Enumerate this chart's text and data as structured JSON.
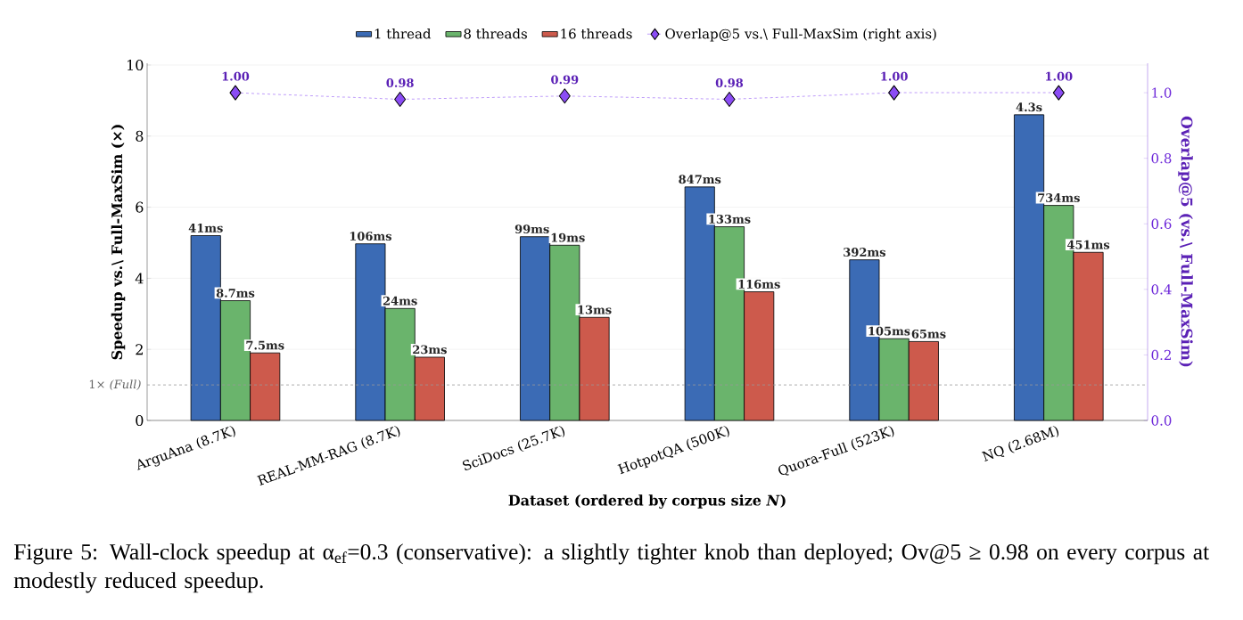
{
  "chart_data": {
    "type": "bar",
    "categories": [
      "ArguAna (8.7K)",
      "REAL-MM-RAG (8.7K)",
      "SciDocs (25.7K)",
      "HotpotQA (500K)",
      "Quora-Full (523K)",
      "NQ (2.68M)"
    ],
    "series": [
      {
        "name": "1 thread",
        "color": "#3b6bb5",
        "values": [
          5.2,
          4.97,
          5.17,
          6.57,
          4.52,
          8.6
        ]
      },
      {
        "name": "8 threads",
        "color": "#6ab46c",
        "values": [
          3.37,
          3.15,
          4.93,
          5.45,
          2.3,
          6.05
        ]
      },
      {
        "name": "16 threads",
        "color": "#cd5a4c",
        "values": [
          1.9,
          1.78,
          2.9,
          3.62,
          2.22,
          4.73
        ]
      },
      {
        "name": "Overlap@5 vs.\\ Full-MaxSim (right axis)",
        "type": "line",
        "axis": "y2",
        "color": "#8b4cf5",
        "line_style": "dashed",
        "marker": "diamond",
        "values": [
          1.0,
          0.98,
          0.99,
          0.98,
          1.0,
          1.0
        ],
        "value_labels": [
          "1.00",
          "0.98",
          "0.99",
          "0.98",
          "1.00",
          "1.00"
        ]
      }
    ],
    "xlabel": "Dataset (ordered by corpus size *N*)",
    "ylabel": "Speedup vs.\\ Full-MaxSim (×)",
    "y2label": "Overlap@5  (vs.\\ Full-MaxSim)",
    "ylim": [
      0,
      10.05
    ],
    "yticks": [
      0,
      2,
      4,
      6,
      8,
      10
    ],
    "y2lim": [
      0,
      1.09
    ],
    "y2ticks": [
      {
        "value": 0,
        "label": "0.0"
      },
      0.2,
      0.4,
      0.6,
      0.8,
      {
        "value": 1.0,
        "label": "1.0"
      }
    ],
    "grid": "y",
    "legend": "top",
    "ref_lines": [
      {
        "axis": "y",
        "value": 1,
        "label": "1× *(Full)*",
        "color": "#999999",
        "line_style": "dashed"
      }
    ],
    "annotations": [
      "41ms",
      "8.7ms",
      "7.5ms",
      "106ms",
      "24ms",
      "23ms",
      "99ms",
      "19ms",
      "13ms",
      "847ms",
      "133ms",
      "116ms",
      "392ms",
      "105ms",
      "65ms",
      "4.3s",
      "734ms",
      "451ms",
      "Figure 5: Wall-clock speedup at α$_{ef}$=0.3 (conservative): a slightly tighter knob than deployed; Ov@5 ≥ 0.98 on every corpus at modestly reduced speedup."
    ]
  }
}
